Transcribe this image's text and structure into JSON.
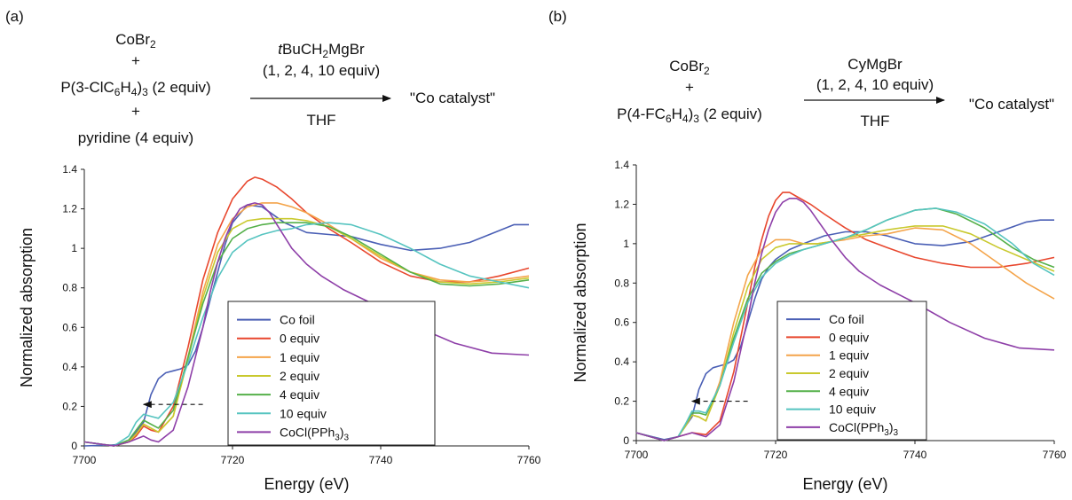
{
  "colors": {
    "co_foil": "#4a5fb5",
    "eq0": "#e8472e",
    "eq1": "#f4a44a",
    "eq2": "#c9c92e",
    "eq4": "#55b04a",
    "eq10": "#56c4c0",
    "cocl": "#8e3fa8"
  },
  "panels": [
    {
      "label": "(a)",
      "reactants": [
        "CoBr2",
        "+",
        "P(3-ClC6H4)3 (2 equiv)",
        "+",
        "pyridine (4 equiv)"
      ],
      "reagent_top": "tBuCH2MgBr",
      "reagent_mid": "(1, 2, 4, 10 equiv)",
      "reagent_bottom": "THF",
      "product": "\"Co catalyst\""
    },
    {
      "label": "(b)",
      "reactants": [
        "CoBr2",
        "+",
        "P(4-FC6H4)3 (2 equiv)"
      ],
      "reagent_top": "CyMgBr",
      "reagent_mid": "(1, 2, 4, 10 equiv)",
      "reagent_bottom": "THF",
      "product": "\"Co catalyst\""
    }
  ],
  "chart_data": [
    {
      "type": "line",
      "xlabel": "Energy (eV)",
      "ylabel": "Normalized absorption",
      "xlim": [
        7700,
        7760
      ],
      "ylim": [
        0,
        1.4
      ],
      "xticks": [
        7700,
        7720,
        7740,
        7760
      ],
      "yticks": [
        0,
        0.2,
        0.4,
        0.6,
        0.8,
        1,
        1.2,
        1.4
      ],
      "ytick_labels": [
        "0",
        "0.2",
        "0.4",
        "0.6",
        "0.8",
        "1",
        "1.2",
        "1.4"
      ],
      "legend_placement": "bottom-center",
      "annotation": "dashed arrow at y≈0.21 from 7716 eV to 7708 eV",
      "series": [
        {
          "name": "Co foil",
          "color": "#4a5fb5",
          "x": [
            7700,
            7704,
            7706,
            7708,
            7709,
            7710,
            7711,
            7712,
            7713,
            7714,
            7715,
            7716,
            7717,
            7718,
            7719,
            7720,
            7722,
            7724,
            7727,
            7730,
            7733,
            7736,
            7740,
            7744,
            7748,
            7752,
            7756,
            7758,
            7760
          ],
          "y": [
            0,
            0.005,
            0.02,
            0.12,
            0.26,
            0.34,
            0.37,
            0.38,
            0.39,
            0.41,
            0.48,
            0.6,
            0.74,
            0.88,
            1.02,
            1.13,
            1.22,
            1.21,
            1.13,
            1.08,
            1.07,
            1.06,
            1.02,
            0.99,
            1.0,
            1.03,
            1.09,
            1.12,
            1.12
          ]
        },
        {
          "name": "0 equiv",
          "color": "#e8472e",
          "x": [
            7700,
            7704,
            7706,
            7707,
            7708,
            7709,
            7710,
            7712,
            7714,
            7716,
            7718,
            7720,
            7722,
            7723,
            7724,
            7726,
            7728,
            7730,
            7733,
            7736,
            7740,
            7744,
            7748,
            7752,
            7756,
            7760
          ],
          "y": [
            0.02,
            0.0,
            0.02,
            0.05,
            0.1,
            0.08,
            0.07,
            0.2,
            0.5,
            0.84,
            1.08,
            1.25,
            1.34,
            1.36,
            1.35,
            1.31,
            1.25,
            1.18,
            1.1,
            1.03,
            0.93,
            0.86,
            0.83,
            0.83,
            0.86,
            0.9
          ]
        },
        {
          "name": "1 equiv",
          "color": "#f4a44a",
          "x": [
            7700,
            7704,
            7706,
            7707,
            7708,
            7709,
            7710,
            7712,
            7714,
            7716,
            7718,
            7720,
            7722,
            7724,
            7726,
            7728,
            7730,
            7733,
            7736,
            7740,
            7744,
            7748,
            7752,
            7756,
            7760
          ],
          "y": [
            0.02,
            0.0,
            0.02,
            0.06,
            0.11,
            0.09,
            0.07,
            0.15,
            0.45,
            0.78,
            1.02,
            1.15,
            1.21,
            1.23,
            1.23,
            1.21,
            1.18,
            1.12,
            1.05,
            0.95,
            0.88,
            0.84,
            0.83,
            0.84,
            0.86
          ]
        },
        {
          "name": "2 equiv",
          "color": "#c9c92e",
          "x": [
            7700,
            7704,
            7706,
            7707,
            7708,
            7709,
            7710,
            7712,
            7714,
            7716,
            7718,
            7720,
            7722,
            7724,
            7726,
            7728,
            7730,
            7733,
            7736,
            7740,
            7744,
            7748,
            7752,
            7756,
            7760
          ],
          "y": [
            0.02,
            0.0,
            0.02,
            0.06,
            0.11,
            0.09,
            0.07,
            0.15,
            0.44,
            0.75,
            0.98,
            1.1,
            1.14,
            1.15,
            1.15,
            1.15,
            1.14,
            1.11,
            1.05,
            0.96,
            0.88,
            0.83,
            0.82,
            0.83,
            0.85
          ]
        },
        {
          "name": "4 equiv",
          "color": "#55b04a",
          "x": [
            7700,
            7704,
            7706,
            7707,
            7708,
            7709,
            7710,
            7712,
            7714,
            7716,
            7718,
            7720,
            7722,
            7724,
            7726,
            7728,
            7730,
            7733,
            7736,
            7740,
            7744,
            7748,
            7752,
            7756,
            7760
          ],
          "y": [
            0.02,
            0.0,
            0.03,
            0.08,
            0.13,
            0.11,
            0.09,
            0.18,
            0.45,
            0.72,
            0.93,
            1.05,
            1.1,
            1.12,
            1.13,
            1.13,
            1.13,
            1.11,
            1.06,
            0.97,
            0.88,
            0.82,
            0.81,
            0.82,
            0.84
          ]
        },
        {
          "name": "10 equiv",
          "color": "#56c4c0",
          "x": [
            7700,
            7704,
            7706,
            7707,
            7708,
            7709,
            7710,
            7712,
            7714,
            7716,
            7718,
            7720,
            7722,
            7724,
            7726,
            7728,
            7730,
            7733,
            7736,
            7740,
            7744,
            7748,
            7752,
            7756,
            7760
          ],
          "y": [
            0.02,
            0.0,
            0.05,
            0.12,
            0.16,
            0.15,
            0.14,
            0.22,
            0.42,
            0.65,
            0.85,
            0.98,
            1.04,
            1.07,
            1.09,
            1.1,
            1.12,
            1.13,
            1.12,
            1.07,
            1.0,
            0.92,
            0.86,
            0.83,
            0.8
          ]
        },
        {
          "name": "CoCl(PPh3)3",
          "color": "#8e3fa8",
          "x": [
            7700,
            7704,
            7706,
            7708,
            7709,
            7710,
            7712,
            7714,
            7716,
            7717,
            7718,
            7719,
            7720,
            7721,
            7722,
            7723,
            7724,
            7725,
            7726,
            7728,
            7730,
            7732,
            7735,
            7740,
            7745,
            7750,
            7755,
            7760
          ],
          "y": [
            0.02,
            0.0,
            0.02,
            0.05,
            0.03,
            0.02,
            0.08,
            0.3,
            0.6,
            0.78,
            0.93,
            1.05,
            1.14,
            1.2,
            1.22,
            1.23,
            1.22,
            1.18,
            1.12,
            1.0,
            0.92,
            0.86,
            0.79,
            0.7,
            0.6,
            0.52,
            0.47,
            0.46
          ]
        }
      ]
    },
    {
      "type": "line",
      "xlabel": "Energy (eV)",
      "ylabel": "Normalized absorption",
      "xlim": [
        7700,
        7760
      ],
      "ylim": [
        0,
        1.4
      ],
      "xticks": [
        7700,
        7720,
        7740,
        7760
      ],
      "yticks": [
        0,
        0.2,
        0.4,
        0.6,
        0.8,
        1,
        1.2,
        1.4
      ],
      "ytick_labels": [
        "0",
        "0.2",
        "0.4",
        "0.6",
        "0.8",
        "1",
        "1.2",
        "1.4"
      ],
      "legend_placement": "bottom-center",
      "annotation": "dashed arrow at y≈0.20 from 7716 eV to 7708 eV",
      "series": [
        {
          "name": "Co foil",
          "color": "#4a5fb5",
          "x": [
            7700,
            7704,
            7706,
            7708,
            7709,
            7710,
            7711,
            7712,
            7713,
            7714,
            7715,
            7716,
            7717,
            7718,
            7719,
            7720,
            7722,
            7724,
            7727,
            7730,
            7733,
            7736,
            7740,
            7744,
            7748,
            7752,
            7756,
            7758,
            7760
          ],
          "y": [
            0.04,
            0.005,
            0.02,
            0.12,
            0.26,
            0.34,
            0.37,
            0.38,
            0.39,
            0.41,
            0.48,
            0.6,
            0.72,
            0.82,
            0.88,
            0.92,
            0.97,
            1.0,
            1.04,
            1.06,
            1.06,
            1.04,
            1.0,
            0.99,
            1.01,
            1.06,
            1.11,
            1.12,
            1.12
          ]
        },
        {
          "name": "0 equiv",
          "color": "#e8472e",
          "x": [
            7700,
            7704,
            7706,
            7708,
            7710,
            7712,
            7714,
            7716,
            7717,
            7718,
            7719,
            7720,
            7721,
            7722,
            7723,
            7725,
            7727,
            7730,
            7733,
            7736,
            7740,
            7744,
            7748,
            7752,
            7756,
            7760
          ],
          "y": [
            0.04,
            0.0,
            0.02,
            0.04,
            0.03,
            0.1,
            0.35,
            0.7,
            0.88,
            1.02,
            1.14,
            1.22,
            1.26,
            1.26,
            1.24,
            1.2,
            1.15,
            1.08,
            1.02,
            0.98,
            0.93,
            0.9,
            0.88,
            0.88,
            0.9,
            0.93
          ]
        },
        {
          "name": "1 equiv",
          "color": "#f4a44a",
          "x": [
            7700,
            7704,
            7706,
            7707,
            7708,
            7709,
            7710,
            7712,
            7714,
            7716,
            7718,
            7720,
            7722,
            7724,
            7726,
            7728,
            7730,
            7733,
            7736,
            7740,
            7744,
            7748,
            7752,
            7756,
            7760
          ],
          "y": [
            0.04,
            0.0,
            0.02,
            0.07,
            0.13,
            0.12,
            0.1,
            0.3,
            0.6,
            0.84,
            0.97,
            1.02,
            1.02,
            1.0,
            1.0,
            1.01,
            1.02,
            1.04,
            1.05,
            1.08,
            1.07,
            1.0,
            0.9,
            0.8,
            0.72
          ]
        },
        {
          "name": "2 equiv",
          "color": "#c9c92e",
          "x": [
            7700,
            7704,
            7706,
            7707,
            7708,
            7709,
            7710,
            7712,
            7714,
            7716,
            7718,
            7720,
            7722,
            7724,
            7726,
            7728,
            7730,
            7733,
            7736,
            7740,
            7744,
            7748,
            7752,
            7756,
            7760
          ],
          "y": [
            0.04,
            0.0,
            0.02,
            0.07,
            0.13,
            0.12,
            0.1,
            0.28,
            0.55,
            0.78,
            0.92,
            0.98,
            1.0,
            1.0,
            1.0,
            1.01,
            1.03,
            1.05,
            1.07,
            1.09,
            1.09,
            1.05,
            0.98,
            0.92,
            0.86
          ]
        },
        {
          "name": "4 equiv",
          "color": "#55b04a",
          "x": [
            7700,
            7704,
            7706,
            7707,
            7708,
            7709,
            7710,
            7712,
            7714,
            7716,
            7718,
            7720,
            7722,
            7724,
            7726,
            7728,
            7730,
            7733,
            7736,
            7740,
            7743,
            7746,
            7750,
            7754,
            7757,
            7760
          ],
          "y": [
            0.04,
            0.0,
            0.02,
            0.08,
            0.14,
            0.14,
            0.13,
            0.28,
            0.52,
            0.72,
            0.85,
            0.91,
            0.95,
            0.97,
            0.99,
            1.01,
            1.03,
            1.07,
            1.12,
            1.17,
            1.18,
            1.15,
            1.08,
            0.98,
            0.92,
            0.88
          ]
        },
        {
          "name": "10 equiv",
          "color": "#56c4c0",
          "x": [
            7700,
            7704,
            7706,
            7707,
            7708,
            7709,
            7710,
            7712,
            7714,
            7716,
            7718,
            7720,
            7722,
            7724,
            7726,
            7728,
            7730,
            7733,
            7736,
            7740,
            7743,
            7746,
            7750,
            7754,
            7757,
            7760
          ],
          "y": [
            0.04,
            0.0,
            0.02,
            0.08,
            0.15,
            0.15,
            0.14,
            0.28,
            0.5,
            0.7,
            0.83,
            0.9,
            0.94,
            0.97,
            0.99,
            1.01,
            1.03,
            1.07,
            1.12,
            1.17,
            1.18,
            1.16,
            1.1,
            1.0,
            0.9,
            0.84
          ]
        },
        {
          "name": "CoCl(PPh3)3",
          "color": "#8e3fa8",
          "x": [
            7700,
            7704,
            7706,
            7708,
            7710,
            7712,
            7714,
            7716,
            7717,
            7718,
            7719,
            7720,
            7721,
            7722,
            7723,
            7724,
            7725,
            7726,
            7728,
            7730,
            7732,
            7735,
            7740,
            7745,
            7750,
            7755,
            7760
          ],
          "y": [
            0.04,
            0.0,
            0.02,
            0.04,
            0.02,
            0.08,
            0.3,
            0.62,
            0.8,
            0.95,
            1.07,
            1.16,
            1.21,
            1.23,
            1.23,
            1.21,
            1.17,
            1.12,
            1.02,
            0.93,
            0.86,
            0.79,
            0.7,
            0.6,
            0.52,
            0.47,
            0.46
          ]
        }
      ]
    }
  ]
}
